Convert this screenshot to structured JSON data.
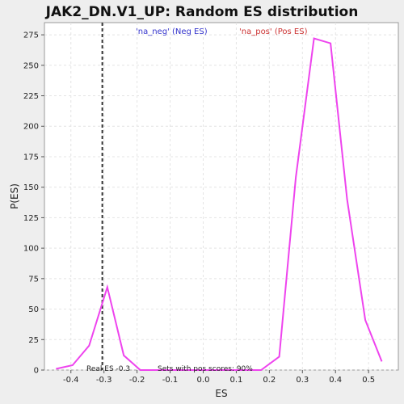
{
  "chart_data": {
    "type": "line",
    "title": "JAK2_DN.V1_UP: Random ES distribution",
    "xlabel": "ES",
    "ylabel": "P(ES)",
    "xlim": [
      -0.48,
      0.59
    ],
    "ylim": [
      0,
      285
    ],
    "xticks": [
      -0.4,
      -0.3,
      -0.2,
      -0.1,
      0.0,
      0.1,
      0.2,
      0.3,
      0.4,
      0.5
    ],
    "xtick_labels": [
      "-0.4",
      "-0.3",
      "-0.2",
      "-0.1",
      "0.0",
      "0.1",
      "0.2",
      "0.3",
      "0.4",
      "0.5"
    ],
    "yticks": [
      0,
      25,
      50,
      75,
      100,
      125,
      150,
      175,
      200,
      225,
      250,
      275
    ],
    "ytick_labels": [
      "0",
      "25",
      "50",
      "75",
      "100",
      "125",
      "150",
      "175",
      "200",
      "225",
      "250",
      "275"
    ],
    "grid": true,
    "legend": [
      {
        "label": "'na_neg' (Neg ES)",
        "color": "#3333cc"
      },
      {
        "label": "'na_pos' (Pos ES)",
        "color": "#cc3333"
      }
    ],
    "series": [
      {
        "color": "#ee44ee",
        "x": [
          -0.445,
          -0.395,
          -0.345,
          -0.29,
          -0.24,
          -0.19,
          -0.14,
          -0.09,
          -0.04,
          0.01,
          0.06,
          0.11,
          0.16,
          0.175,
          0.23,
          0.28,
          0.335,
          0.385,
          0.435,
          0.49,
          0.54
        ],
        "y": [
          1,
          4,
          20,
          68,
          12,
          0,
          0,
          0,
          0,
          0,
          0,
          0,
          0,
          0,
          11,
          158,
          272,
          268,
          140,
          41,
          7
        ]
      }
    ],
    "real_es_marker": {
      "x": -0.305,
      "color": "#333333"
    },
    "annotations": {
      "real_es": "Real ES -0.3",
      "pos_scores": "Sets with pos scores: 90%"
    }
  }
}
